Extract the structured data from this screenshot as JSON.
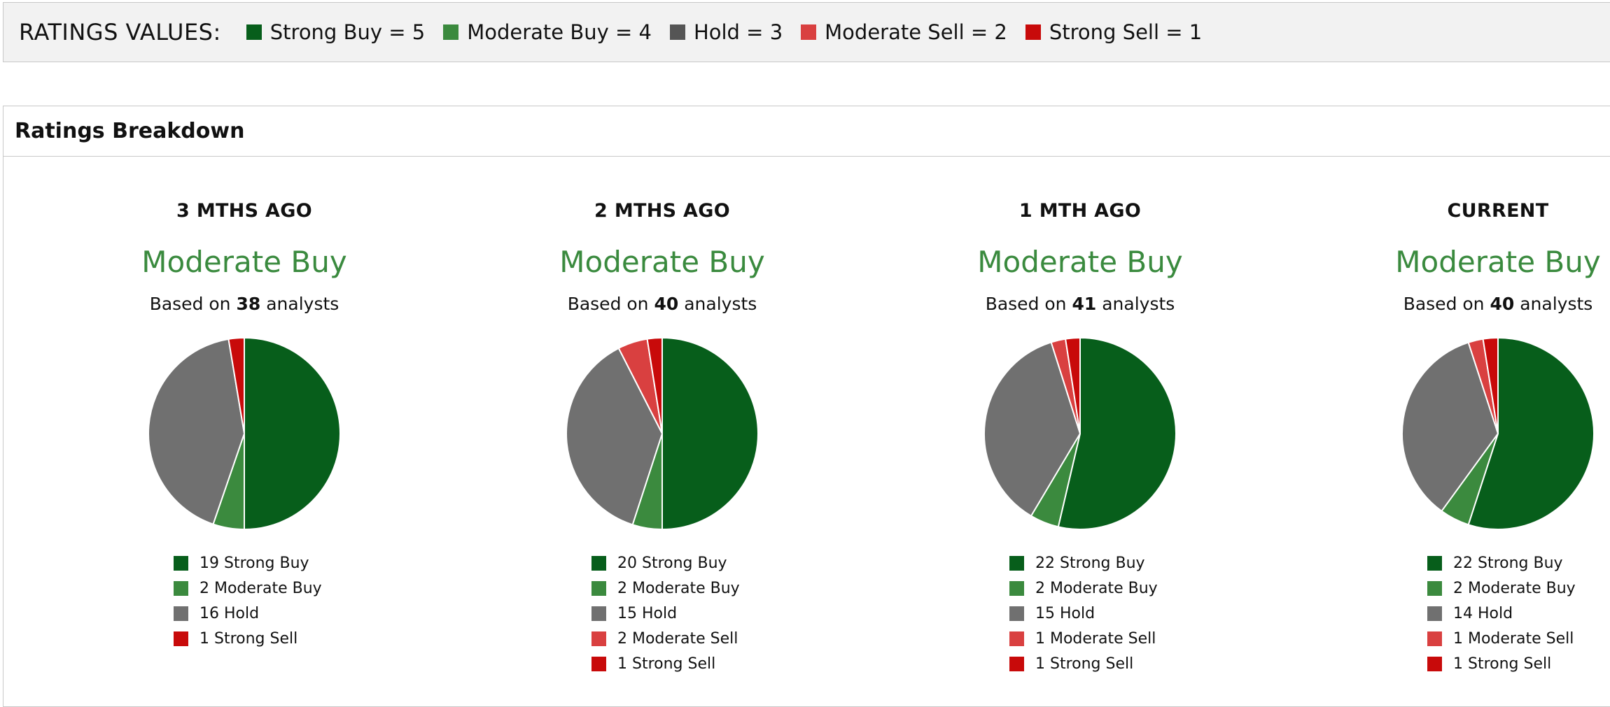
{
  "ratings_values": {
    "title": "RATINGS VALUES:",
    "items": [
      {
        "label": "Strong Buy = 5",
        "color": "#075e1b"
      },
      {
        "label": "Moderate Buy = 4",
        "color": "#3b8a3e"
      },
      {
        "label": "Hold = 3",
        "color": "#555555"
      },
      {
        "label": "Moderate Sell = 2",
        "color": "#d94040"
      },
      {
        "label": "Strong Sell = 1",
        "color": "#c80a0a"
      }
    ]
  },
  "breakdown": {
    "title": "Ratings Breakdown"
  },
  "colors": {
    "Strong Buy": "#075e1b",
    "Moderate Buy": "#3b8a3e",
    "Hold": "#707070",
    "Moderate Sell": "#d94040",
    "Strong Sell": "#c80a0a"
  },
  "chart_data": [
    {
      "type": "pie",
      "title": "3 MTHS AGO",
      "consensus": "Moderate Buy",
      "based_on": {
        "prefix": "Based on",
        "count": "38",
        "suffix": "analysts"
      },
      "categories": [
        "Strong Buy",
        "Moderate Buy",
        "Hold",
        "Strong Sell"
      ],
      "values": [
        19,
        2,
        16,
        1
      ],
      "legend": [
        "19 Strong Buy",
        "2 Moderate Buy",
        "16 Hold",
        "1 Strong Sell"
      ]
    },
    {
      "type": "pie",
      "title": "2 MTHS AGO",
      "consensus": "Moderate Buy",
      "based_on": {
        "prefix": "Based on",
        "count": "40",
        "suffix": "analysts"
      },
      "categories": [
        "Strong Buy",
        "Moderate Buy",
        "Hold",
        "Moderate Sell",
        "Strong Sell"
      ],
      "values": [
        20,
        2,
        15,
        2,
        1
      ],
      "legend": [
        "20 Strong Buy",
        "2 Moderate Buy",
        "15 Hold",
        "2 Moderate Sell",
        "1 Strong Sell"
      ]
    },
    {
      "type": "pie",
      "title": "1 MTH AGO",
      "consensus": "Moderate Buy",
      "based_on": {
        "prefix": "Based on",
        "count": "41",
        "suffix": "analysts"
      },
      "categories": [
        "Strong Buy",
        "Moderate Buy",
        "Hold",
        "Moderate Sell",
        "Strong Sell"
      ],
      "values": [
        22,
        2,
        15,
        1,
        1
      ],
      "legend": [
        "22 Strong Buy",
        "2 Moderate Buy",
        "15 Hold",
        "1 Moderate Sell",
        "1 Strong Sell"
      ]
    },
    {
      "type": "pie",
      "title": "CURRENT",
      "consensus": "Moderate Buy",
      "based_on": {
        "prefix": "Based on",
        "count": "40",
        "suffix": "analysts"
      },
      "categories": [
        "Strong Buy",
        "Moderate Buy",
        "Hold",
        "Moderate Sell",
        "Strong Sell"
      ],
      "values": [
        22,
        2,
        14,
        1,
        1
      ],
      "legend": [
        "22 Strong Buy",
        "2 Moderate Buy",
        "14 Hold",
        "1 Moderate Sell",
        "1 Strong Sell"
      ]
    }
  ]
}
